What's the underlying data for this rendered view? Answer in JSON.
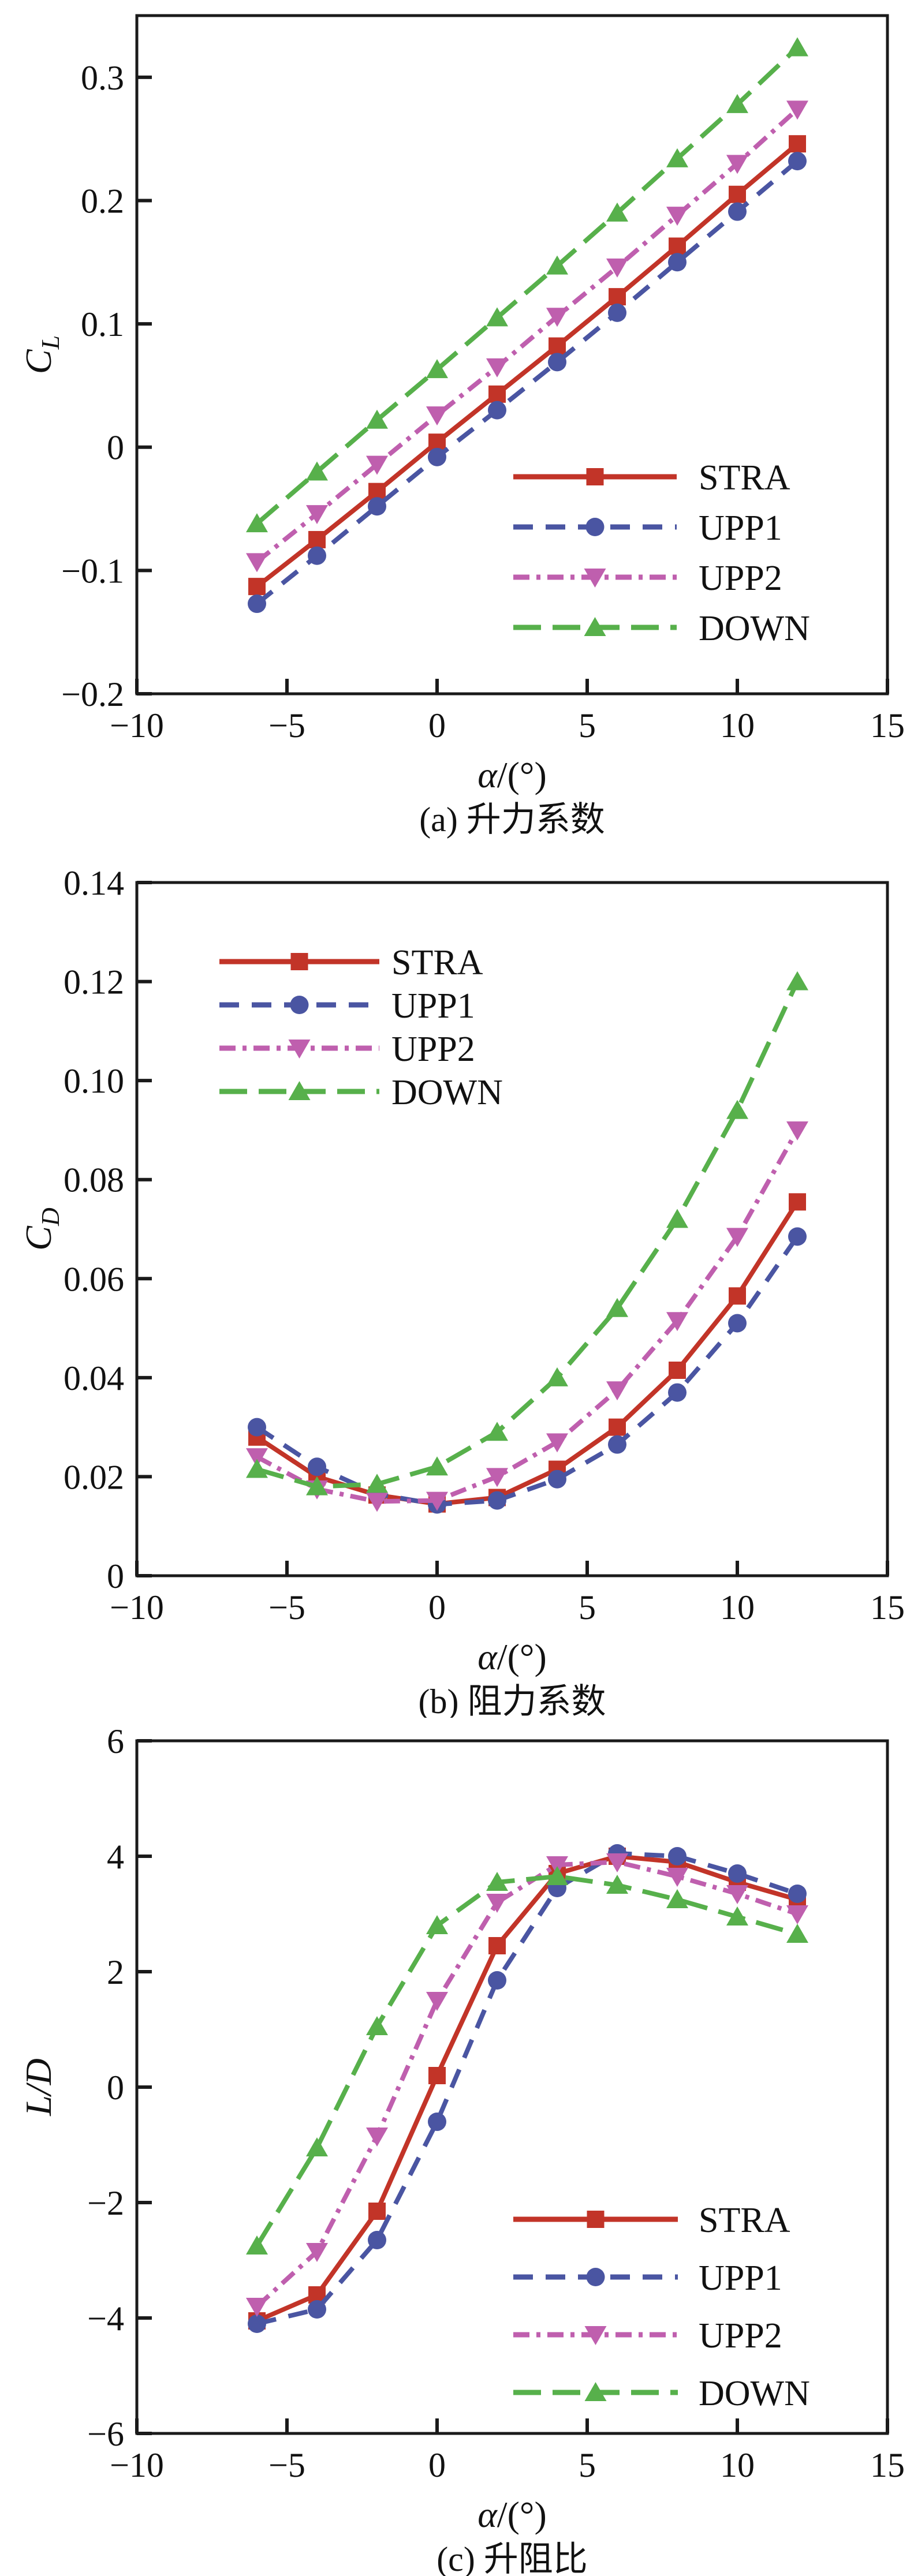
{
  "page": {
    "background": "#ffffff",
    "text_color": "#111111",
    "frame_color": "#1a1a1a"
  },
  "series_styles": [
    {
      "name": "STRA",
      "color": "#C23428",
      "marker": "square-icon",
      "line": "solid"
    },
    {
      "name": "UPP1",
      "color": "#4A55A2",
      "marker": "circle-icon",
      "line": "dashed"
    },
    {
      "name": "UPP2",
      "color": "#BF5FAE",
      "marker": "triangle-down-icon",
      "line": "dash-dot"
    },
    {
      "name": "DOWN",
      "color": "#57B04B",
      "marker": "triangle-up-icon",
      "line": "long-dash"
    }
  ],
  "chart_data": [
    {
      "id": "a",
      "type": "line",
      "caption": "(a) 升力系数",
      "xlabel_italic": "α",
      "xlabel_rest": "/(°)",
      "ylabel_base": "C",
      "ylabel_sub": "L",
      "xlim": [
        -10,
        15
      ],
      "xtick_values": [
        -10,
        -5,
        0,
        5,
        10,
        15
      ],
      "xtick_labels": [
        "−10",
        "−5",
        "0",
        "5",
        "10",
        "15"
      ],
      "ylim": [
        -0.2,
        0.35
      ],
      "ytick_values": [
        -0.2,
        -0.1,
        0,
        0.1,
        0.2,
        0.3
      ],
      "ytick_labels": [
        "−0.2",
        "−0.1",
        "0",
        "0.1",
        "0.2",
        "0.3"
      ],
      "grid": false,
      "legend_position": "bottom-right",
      "x": [
        -6,
        -4,
        -2,
        0,
        2,
        4,
        6,
        8,
        10,
        12
      ],
      "series": [
        {
          "name": "STRA",
          "values": [
            -0.113,
            -0.075,
            -0.036,
            0.004,
            0.043,
            0.082,
            0.122,
            0.163,
            0.205,
            0.246
          ]
        },
        {
          "name": "UPP1",
          "values": [
            -0.127,
            -0.088,
            -0.048,
            -0.008,
            0.03,
            0.069,
            0.109,
            0.15,
            0.191,
            0.232
          ]
        },
        {
          "name": "UPP2",
          "values": [
            -0.093,
            -0.054,
            -0.014,
            0.026,
            0.065,
            0.106,
            0.146,
            0.188,
            0.23,
            0.274
          ]
        },
        {
          "name": "DOWN",
          "values": [
            -0.062,
            -0.02,
            0.022,
            0.063,
            0.105,
            0.147,
            0.19,
            0.234,
            0.278,
            0.324
          ]
        }
      ]
    },
    {
      "id": "b",
      "type": "line",
      "caption": "(b) 阻力系数",
      "xlabel_italic": "α",
      "xlabel_rest": "/(°)",
      "ylabel_base": "C",
      "ylabel_sub": "D",
      "xlim": [
        -10,
        15
      ],
      "xtick_values": [
        -10,
        -5,
        0,
        5,
        10,
        15
      ],
      "xtick_labels": [
        "−10",
        "−5",
        "0",
        "5",
        "10",
        "15"
      ],
      "ylim": [
        0,
        0.14
      ],
      "ytick_values": [
        0,
        0.02,
        0.04,
        0.06,
        0.08,
        0.1,
        0.12,
        0.14
      ],
      "ytick_labels": [
        "0",
        "0.02",
        "0.04",
        "0.06",
        "0.08",
        "0.10",
        "0.12",
        "0.14"
      ],
      "grid": false,
      "legend_position": "top-left",
      "x": [
        -6,
        -4,
        -2,
        0,
        2,
        4,
        6,
        8,
        10,
        12
      ],
      "series": [
        {
          "name": "STRA",
          "values": [
            0.028,
            0.02,
            0.0163,
            0.0145,
            0.0158,
            0.0215,
            0.03,
            0.0415,
            0.0565,
            0.0755
          ]
        },
        {
          "name": "UPP1",
          "values": [
            0.03,
            0.022,
            0.0165,
            0.0144,
            0.0152,
            0.0195,
            0.0265,
            0.037,
            0.051,
            0.0685
          ]
        },
        {
          "name": "UPP2",
          "values": [
            0.024,
            0.0175,
            0.015,
            0.0152,
            0.02,
            0.027,
            0.0375,
            0.0515,
            0.0685,
            0.09
          ]
        },
        {
          "name": "DOWN",
          "values": [
            0.0215,
            0.018,
            0.0185,
            0.022,
            0.029,
            0.04,
            0.054,
            0.072,
            0.094,
            0.12
          ]
        }
      ]
    },
    {
      "id": "c",
      "type": "line",
      "caption": "(c) 升阻比",
      "xlabel_italic": "α",
      "xlabel_rest": "/(°)",
      "ylabel_base": "L/D",
      "ylabel_sub": "",
      "xlim": [
        -10,
        15
      ],
      "xtick_values": [
        -10,
        -5,
        0,
        5,
        10,
        15
      ],
      "xtick_labels": [
        "−10",
        "−5",
        "0",
        "5",
        "10",
        "15"
      ],
      "ylim": [
        -6,
        6
      ],
      "ytick_values": [
        -6,
        -4,
        -2,
        0,
        2,
        4,
        6
      ],
      "ytick_labels": [
        "−6",
        "−4",
        "−2",
        "0",
        "2",
        "4",
        "6"
      ],
      "grid": false,
      "legend_position": "bottom-right",
      "x": [
        -6,
        -4,
        -2,
        0,
        2,
        4,
        6,
        8,
        10,
        12
      ],
      "series": [
        {
          "name": "STRA",
          "values": [
            -4.05,
            -3.6,
            -2.15,
            0.2,
            2.45,
            3.7,
            4.0,
            3.9,
            3.55,
            3.25
          ]
        },
        {
          "name": "UPP1",
          "values": [
            -4.1,
            -3.85,
            -2.65,
            -0.6,
            1.85,
            3.45,
            4.05,
            4.0,
            3.7,
            3.35
          ]
        },
        {
          "name": "UPP2",
          "values": [
            -3.8,
            -2.85,
            -0.85,
            1.5,
            3.2,
            3.85,
            3.9,
            3.65,
            3.35,
            3.0
          ]
        },
        {
          "name": "DOWN",
          "values": [
            -2.75,
            -1.05,
            1.05,
            2.8,
            3.55,
            3.65,
            3.5,
            3.25,
            2.95,
            2.65
          ]
        }
      ]
    }
  ]
}
